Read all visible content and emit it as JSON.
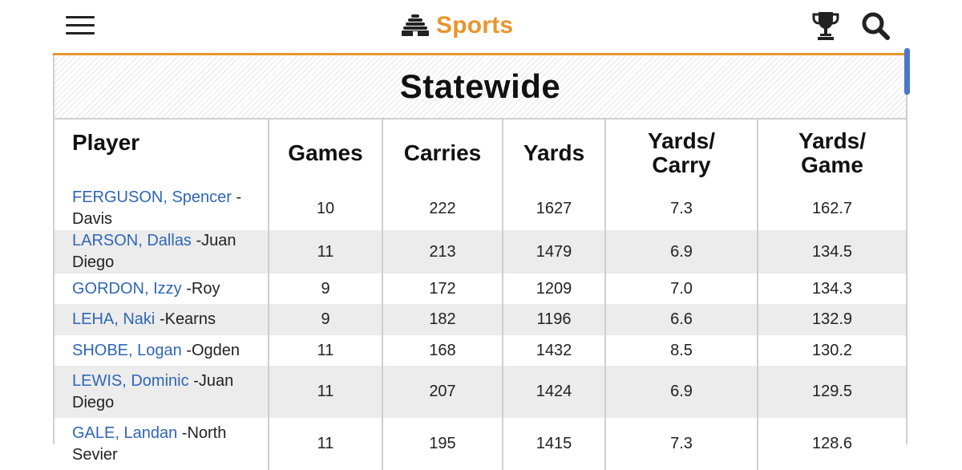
{
  "header": {
    "brand_title": "Sports",
    "brand_color": "#e8952b",
    "icons": [
      "menu-icon",
      "beehive-icon",
      "trophy-icon",
      "search-icon"
    ]
  },
  "table": {
    "title": "Statewide",
    "columns": {
      "player": "Player",
      "games": "Games",
      "carries": "Carries",
      "yards": "Yards",
      "ypc_line1": "Yards/",
      "ypc_line2": "Carry",
      "ypg_line1": "Yards/",
      "ypg_line2": "Game"
    },
    "rows": [
      {
        "name": "FERGUSON, Spencer",
        "school": "-Davis",
        "games": "10",
        "carries": "222",
        "yards": "1627",
        "ypc": "7.3",
        "ypg": "162.7"
      },
      {
        "name": "LARSON, Dallas",
        "school": "-Juan Diego",
        "games": "11",
        "carries": "213",
        "yards": "1479",
        "ypc": "6.9",
        "ypg": "134.5"
      },
      {
        "name": "GORDON, Izzy",
        "school": "-Roy",
        "games": "9",
        "carries": "172",
        "yards": "1209",
        "ypc": "7.0",
        "ypg": "134.3"
      },
      {
        "name": "LEHA, Naki",
        "school": "-Kearns",
        "games": "9",
        "carries": "182",
        "yards": "1196",
        "ypc": "6.6",
        "ypg": "132.9"
      },
      {
        "name": "SHOBE, Logan",
        "school": "-Ogden",
        "games": "11",
        "carries": "168",
        "yards": "1432",
        "ypc": "8.5",
        "ypg": "130.2"
      },
      {
        "name": "LEWIS, Dominic",
        "school": "-Juan Diego",
        "games": "11",
        "carries": "207",
        "yards": "1424",
        "ypc": "6.9",
        "ypg": "129.5"
      },
      {
        "name": "GALE, Landan",
        "school": "-North Sevier",
        "games": "11",
        "carries": "195",
        "yards": "1415",
        "ypc": "7.3",
        "ypg": "128.6"
      }
    ]
  }
}
